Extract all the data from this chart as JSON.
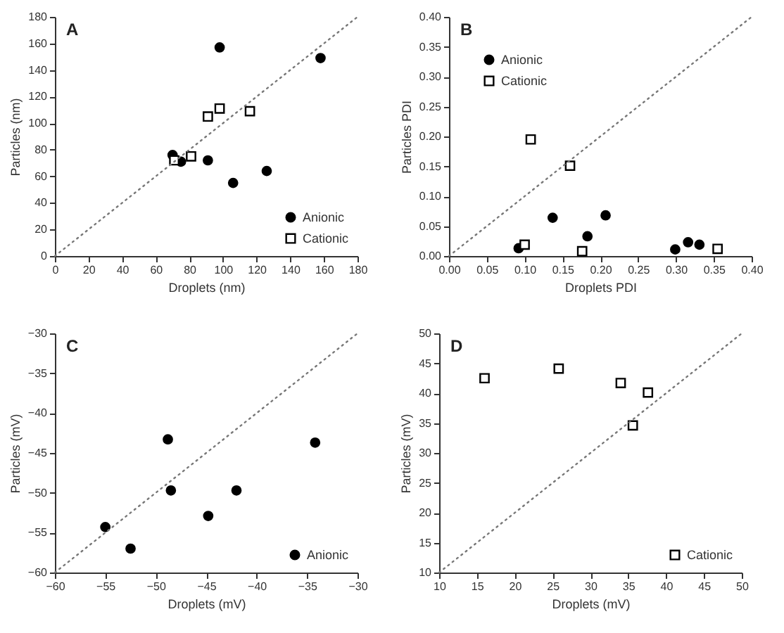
{
  "chart_data": [
    {
      "type": "scatter",
      "title": "A",
      "xlabel": "Droplets (nm)",
      "ylabel": "Particles (nm)",
      "xlim": [
        0,
        180
      ],
      "ylim": [
        0,
        180
      ],
      "xticks": [
        0,
        20,
        40,
        60,
        80,
        100,
        120,
        140,
        160,
        180
      ],
      "yticks": [
        0,
        20,
        40,
        60,
        80,
        100,
        120,
        140,
        160,
        180
      ],
      "legend": "bottom right",
      "grid": false,
      "series": [
        {
          "name": "Anionic",
          "color": "#000000",
          "marker": "circle",
          "x": [
            70,
            75,
            91,
            98,
            106,
            126,
            158
          ],
          "values": [
            76,
            71,
            72,
            157,
            55,
            64,
            149
          ]
        },
        {
          "name": "Cationic",
          "color": "#000000",
          "marker": "square",
          "x": [
            71,
            81,
            91,
            98,
            116
          ],
          "values": [
            72,
            75,
            105,
            111,
            109
          ]
        },
        {
          "type": "line",
          "color": "#777777",
          "line_style": "dotted",
          "marker": "none",
          "x": [
            0,
            180
          ],
          "values": [
            0,
            180
          ]
        }
      ]
    },
    {
      "type": "scatter",
      "title": "B",
      "xlabel": "Droplets PDI",
      "ylabel": "Particles PDI",
      "xlim": [
        0,
        0.4
      ],
      "ylim": [
        0,
        0.4
      ],
      "xticks": [
        {
          "value": 0,
          "label": "0.00"
        },
        {
          "value": 0.05,
          "label": "0.05"
        },
        {
          "value": 0.1,
          "label": "0.10"
        },
        {
          "value": 0.15,
          "label": "0.15"
        },
        {
          "value": 0.2,
          "label": "0.20"
        },
        {
          "value": 0.25,
          "label": "0.25"
        },
        {
          "value": 0.3,
          "label": "0.30"
        },
        {
          "value": 0.35,
          "label": "0.35"
        },
        {
          "value": 0.4,
          "label": "0.40"
        }
      ],
      "yticks": [
        {
          "value": 0,
          "label": "0.00"
        },
        {
          "value": 0.05,
          "label": "0.05"
        },
        {
          "value": 0.1,
          "label": "0.10"
        },
        {
          "value": 0.15,
          "label": "0.15"
        },
        {
          "value": 0.2,
          "label": "0.20"
        },
        {
          "value": 0.25,
          "label": "0.25"
        },
        {
          "value": 0.3,
          "label": "0.30"
        },
        {
          "value": 0.35,
          "label": "0.35"
        },
        {
          "value": 0.4,
          "label": "0.40"
        }
      ],
      "legend": "top left",
      "grid": false,
      "series": [
        {
          "name": "Anionic",
          "color": "#000000",
          "marker": "circle",
          "x": [
            0.092,
            0.137,
            0.183,
            0.207,
            0.299,
            0.316,
            0.331
          ],
          "values": [
            0.013,
            0.064,
            0.033,
            0.068,
            0.011,
            0.023,
            0.019
          ]
        },
        {
          "name": "Cationic",
          "color": "#000000",
          "marker": "square",
          "x": [
            0.1,
            0.108,
            0.16,
            0.176,
            0.355
          ],
          "values": [
            0.019,
            0.195,
            0.151,
            0.008,
            0.012
          ]
        },
        {
          "type": "line",
          "color": "#777777",
          "line_style": "dotted",
          "marker": "none",
          "x": [
            0,
            0.4
          ],
          "values": [
            0,
            0.4
          ]
        }
      ]
    },
    {
      "type": "scatter",
      "title": "C",
      "xlabel": "Droplets (mV)",
      "ylabel": "Particles (mV)",
      "xlim": [
        -60,
        -30
      ],
      "ylim": [
        -60,
        -30
      ],
      "xticks": [
        -60,
        -55,
        -50,
        -45,
        -40,
        -35,
        -30
      ],
      "yticks": [
        -60,
        -55,
        -50,
        -45,
        -40,
        -35,
        -30
      ],
      "legend": "bottom right",
      "grid": false,
      "series": [
        {
          "name": "Anionic",
          "color": "#000000",
          "marker": "circle",
          "x": [
            -55,
            -52.5,
            -48.8,
            -48.5,
            -44.8,
            -42,
            -34.2
          ],
          "values": [
            -54.3,
            -57,
            -43.3,
            -49.7,
            -52.9,
            -49.7,
            -43.7
          ]
        },
        {
          "type": "line",
          "color": "#777777",
          "line_style": "dotted",
          "marker": "none",
          "x": [
            -60,
            -30
          ],
          "values": [
            -60,
            -30
          ]
        }
      ]
    },
    {
      "type": "scatter",
      "title": "D",
      "xlabel": "Droplets (mV)",
      "ylabel": "Particles (mV)",
      "xlim": [
        10,
        50
      ],
      "ylim": [
        10,
        50
      ],
      "xticks": [
        10,
        15,
        20,
        25,
        30,
        35,
        40,
        45,
        50
      ],
      "yticks": [
        10,
        15,
        20,
        25,
        30,
        35,
        40,
        45,
        50
      ],
      "legend": "bottom right",
      "grid": false,
      "series": [
        {
          "name": "Cationic",
          "color": "#000000",
          "marker": "square",
          "x": [
            16,
            25.8,
            34,
            35.6,
            37.6
          ],
          "values": [
            42.5,
            44.1,
            41.7,
            34.6,
            40.1
          ]
        },
        {
          "type": "line",
          "color": "#777777",
          "line_style": "dotted",
          "marker": "none",
          "x": [
            10,
            50
          ],
          "values": [
            10,
            50
          ]
        }
      ]
    }
  ]
}
